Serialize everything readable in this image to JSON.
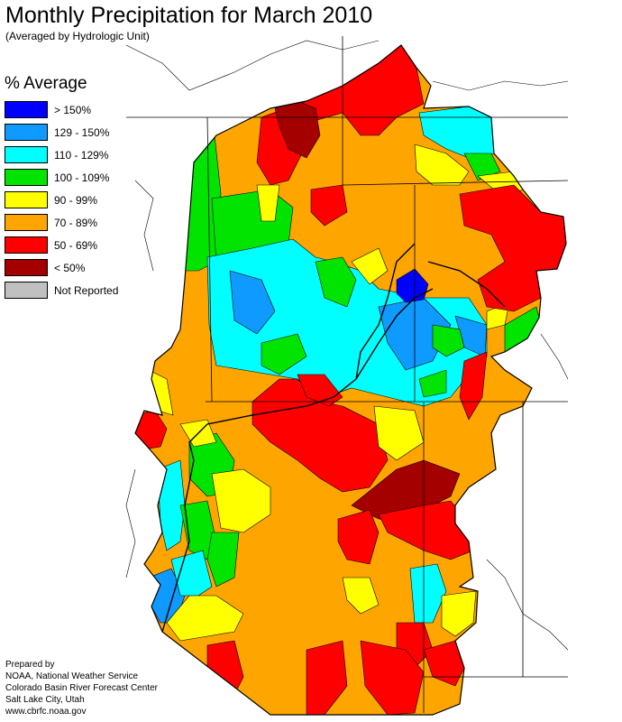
{
  "title": "Monthly Precipitation for March 2010",
  "subtitle": "(Averaged by Hydrologic Unit)",
  "legend": {
    "title": "% Average",
    "items": [
      {
        "label": "> 150%",
        "color": "#0000ff"
      },
      {
        "label": "129 - 150%",
        "color": "#0f9aff"
      },
      {
        "label": "110 - 129%",
        "color": "#00ffff"
      },
      {
        "label": "100 - 109%",
        "color": "#00e400"
      },
      {
        "label": "90 - 99%",
        "color": "#ffff00"
      },
      {
        "label": "70 - 89%",
        "color": "#ffa500"
      },
      {
        "label": "50 - 69%",
        "color": "#ff0000"
      },
      {
        "label": "< 50%",
        "color": "#a50000"
      },
      {
        "label": "Not Reported",
        "color": "#c0c0c0"
      }
    ]
  },
  "credits": [
    "Prepared by",
    "NOAA, National Weather Service",
    "Colorado Basin River Forecast Center",
    "Salt Lake City, Utah",
    "www.cbrfc.noaa.gov"
  ]
}
